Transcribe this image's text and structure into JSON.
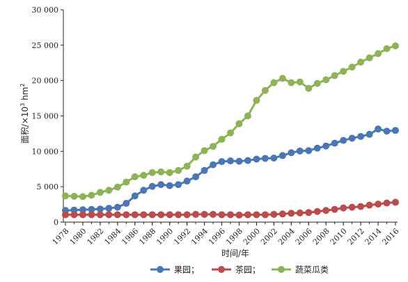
{
  "chart_data": {
    "type": "line",
    "xlabel": "时间/年",
    "ylabel_prefix": "面积/×10",
    "ylabel_sup": "3",
    "ylabel_unit": " hm",
    "ylabel_unit_sup": "2",
    "ylim": [
      0,
      30000
    ],
    "xlim": [
      1978,
      2016
    ],
    "y_ticks": [
      0,
      5000,
      10000,
      15000,
      20000,
      25000,
      30000
    ],
    "y_tick_labels": [
      "0",
      "5 000",
      "10 000",
      "15 000",
      "20 000",
      "25 000",
      "30 000"
    ],
    "x_ticks": [
      1978,
      1980,
      1982,
      1984,
      1986,
      1988,
      1990,
      1992,
      1994,
      1996,
      1998,
      2000,
      2002,
      2004,
      2006,
      2008,
      2010,
      2012,
      2014,
      2016
    ],
    "x_tick_labels": [
      "1978",
      "1980",
      "1982",
      "1984",
      "1986",
      "1988",
      "1990",
      "1992",
      "1994",
      "1996",
      "1998",
      "2000",
      "2002",
      "2004",
      "2006",
      "2008",
      "2010",
      "2012",
      "2014",
      "2016"
    ],
    "grid": false,
    "legend_position": "bottom",
    "x": [
      1978,
      1979,
      1980,
      1981,
      1982,
      1983,
      1984,
      1985,
      1986,
      1987,
      1988,
      1989,
      1990,
      1991,
      1992,
      1993,
      1994,
      1995,
      1996,
      1997,
      1998,
      1999,
      2000,
      2001,
      2002,
      2003,
      2004,
      2005,
      2006,
      2007,
      2008,
      2009,
      2010,
      2011,
      2012,
      2013,
      2014,
      2015,
      2016
    ],
    "series": [
      {
        "name": "果园；",
        "color": "#4a77b3",
        "values": [
          1650,
          1700,
          1750,
          1800,
          1850,
          1950,
          2100,
          2650,
          3700,
          4500,
          5050,
          5300,
          5150,
          5300,
          5800,
          6400,
          7300,
          8100,
          8550,
          8650,
          8600,
          8700,
          8900,
          9000,
          9050,
          9400,
          9800,
          10050,
          10100,
          10450,
          10750,
          11150,
          11550,
          11850,
          12100,
          12400,
          13150,
          12850,
          12950
        ]
      },
      {
        "name": "茶园；",
        "color": "#bc4b4b",
        "values": [
          1050,
          1050,
          1050,
          1050,
          1050,
          1050,
          1050,
          1050,
          1050,
          1050,
          1050,
          1050,
          1050,
          1050,
          1050,
          1100,
          1100,
          1100,
          1050,
          1050,
          1000,
          1050,
          1050,
          1050,
          1100,
          1150,
          1250,
          1300,
          1350,
          1500,
          1650,
          1800,
          2000,
          2100,
          2200,
          2400,
          2550,
          2700,
          2800
        ]
      },
      {
        "name": "蔬菜瓜类",
        "color": "#8db356",
        "values": [
          3700,
          3650,
          3600,
          3800,
          4200,
          4500,
          4950,
          5650,
          6400,
          6600,
          7000,
          7100,
          7000,
          7300,
          7900,
          9200,
          10100,
          10700,
          11700,
          12600,
          13900,
          15000,
          17200,
          18600,
          19700,
          20300,
          19700,
          19800,
          18900,
          19600,
          20100,
          20700,
          21300,
          21900,
          22600,
          23200,
          23800,
          24500,
          24900
        ]
      }
    ]
  }
}
